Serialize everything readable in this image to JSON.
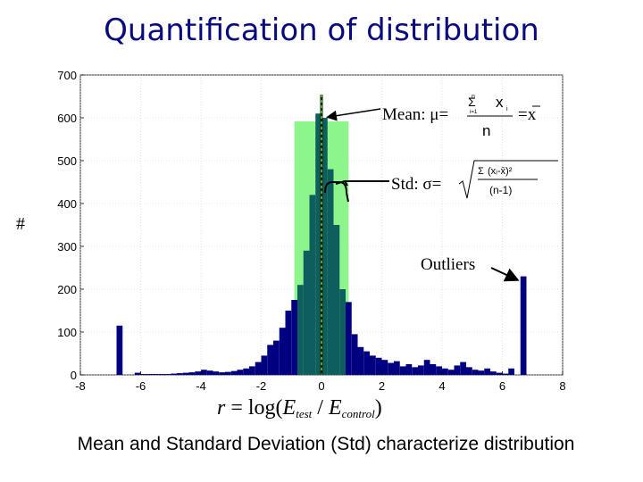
{
  "slide": {
    "title": "Quantification of distribution",
    "caption": "Mean and Standard Deviation (Std) characterize distribution",
    "ylabel": "#"
  },
  "annotations": {
    "mean_label": "Mean: μ=",
    "mean_equals_xbar": "=x",
    "std_label": "Std: σ=",
    "outliers_label": "Outliers"
  },
  "formulas": {
    "mean_numerator": "x",
    "mean_subscript": "i",
    "mean_denominator": "n",
    "mean_sigma": "Σ",
    "mean_sigma_top": "n",
    "mean_sigma_bottom": "i=1",
    "std_sigma": "Σ",
    "std_numerator": "(xᵢ-x̄)²",
    "std_denominator": "(n-1)"
  },
  "colors": {
    "bars": "#000080",
    "std_band": "#8cf58c",
    "mean_line": "#202000",
    "std_inner_bars": "#0e5e5e",
    "title": "#0a0a80"
  },
  "chart_data": {
    "type": "bar",
    "title": "",
    "xlabel": "r = log(Etest / Econtrol)",
    "ylabel": "#",
    "xlim": [
      -8,
      8
    ],
    "ylim": [
      0,
      700
    ],
    "xticks": [
      -8,
      -6,
      -4,
      -2,
      0,
      2,
      4,
      6,
      8
    ],
    "yticks": [
      0,
      100,
      200,
      300,
      400,
      500,
      600,
      700
    ],
    "bin_width": 0.2,
    "mean": 0,
    "std": 0.9,
    "bins": {
      "x": [
        -6.7,
        -6.1,
        -5.9,
        -5.7,
        -5.5,
        -5.3,
        -5.1,
        -4.9,
        -4.7,
        -4.5,
        -4.3,
        -4.1,
        -3.9,
        -3.7,
        -3.5,
        -3.3,
        -3.1,
        -2.9,
        -2.7,
        -2.5,
        -2.3,
        -2.1,
        -1.9,
        -1.7,
        -1.5,
        -1.3,
        -1.1,
        -0.9,
        -0.7,
        -0.5,
        -0.3,
        -0.1,
        0.1,
        0.3,
        0.5,
        0.7,
        0.9,
        1.1,
        1.3,
        1.5,
        1.7,
        1.9,
        2.1,
        2.3,
        2.5,
        2.7,
        2.9,
        3.1,
        3.3,
        3.5,
        3.7,
        3.9,
        4.1,
        4.3,
        4.5,
        4.7,
        4.9,
        5.1,
        5.3,
        5.5,
        5.7,
        5.9,
        6.1,
        6.3,
        6.7
      ],
      "values": [
        115,
        5,
        2,
        2,
        2,
        2,
        2,
        3,
        4,
        5,
        6,
        8,
        12,
        10,
        8,
        6,
        7,
        9,
        12,
        15,
        20,
        30,
        45,
        70,
        80,
        110,
        150,
        175,
        210,
        290,
        420,
        610,
        600,
        480,
        350,
        200,
        170,
        95,
        65,
        55,
        45,
        40,
        35,
        28,
        32,
        20,
        25,
        18,
        22,
        35,
        25,
        20,
        15,
        12,
        22,
        30,
        18,
        12,
        10,
        15,
        8,
        5,
        3,
        15,
        230
      ]
    },
    "annotations": [
      "Mean: μ=",
      "Std: σ=",
      "Outliers"
    ]
  }
}
